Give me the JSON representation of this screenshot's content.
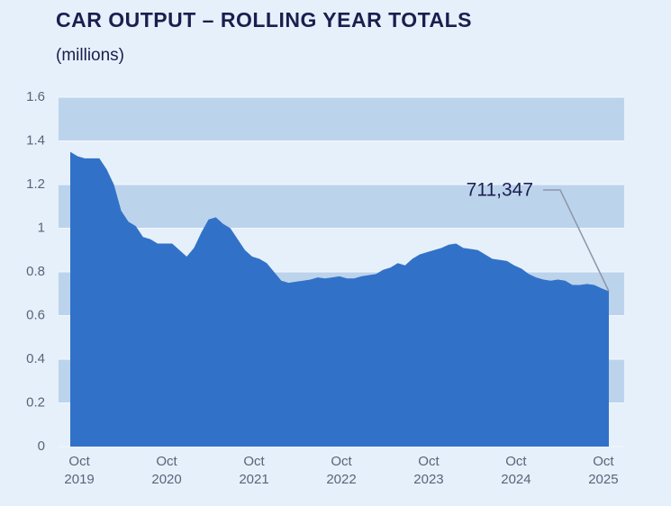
{
  "chart_data": {
    "type": "area",
    "title": "CAR OUTPUT – ROLLING YEAR TOTALS",
    "subtitle": "(millions)",
    "categories": [
      null,
      "Oct 2019",
      null,
      null,
      null,
      null,
      null,
      null,
      null,
      null,
      null,
      null,
      null,
      "Oct 2020",
      null,
      null,
      null,
      null,
      null,
      null,
      null,
      null,
      null,
      null,
      null,
      "Oct 2021",
      null,
      null,
      null,
      null,
      null,
      null,
      null,
      null,
      null,
      null,
      null,
      "Oct 2022",
      null,
      null,
      null,
      null,
      null,
      null,
      null,
      null,
      null,
      null,
      null,
      "Oct 2023",
      null,
      null,
      null,
      null,
      null,
      null,
      null,
      null,
      null,
      null,
      null,
      "Oct 2024",
      null,
      null,
      null,
      null,
      null,
      null,
      null,
      null,
      null,
      null,
      null,
      "Oct 2025",
      null
    ],
    "values": [
      1.35,
      1.33,
      1.32,
      1.32,
      1.32,
      1.27,
      1.2,
      1.08,
      1.03,
      1.01,
      0.96,
      0.95,
      0.93,
      0.93,
      0.93,
      0.9,
      0.87,
      0.91,
      0.98,
      1.04,
      1.05,
      1.02,
      1.0,
      0.95,
      0.9,
      0.87,
      0.86,
      0.84,
      0.8,
      0.76,
      0.75,
      0.755,
      0.76,
      0.765,
      0.775,
      0.77,
      0.775,
      0.78,
      0.77,
      0.77,
      0.78,
      0.785,
      0.79,
      0.81,
      0.82,
      0.84,
      0.83,
      0.86,
      0.88,
      0.89,
      0.9,
      0.91,
      0.925,
      0.93,
      0.91,
      0.905,
      0.9,
      0.88,
      0.86,
      0.855,
      0.85,
      0.83,
      0.815,
      0.79,
      0.775,
      0.765,
      0.76,
      0.765,
      0.76,
      0.74,
      0.74,
      0.745,
      0.74,
      0.725,
      0.711347
    ],
    "color": "#3172c8",
    "band_color": "#bcd3ec",
    "ylim": [
      0,
      1.6
    ],
    "yticks": [
      0,
      0.2,
      0.4,
      0.6,
      0.8,
      1,
      1.2,
      1.4,
      1.6
    ],
    "annotation": {
      "text": "711,347",
      "index": 74
    }
  }
}
